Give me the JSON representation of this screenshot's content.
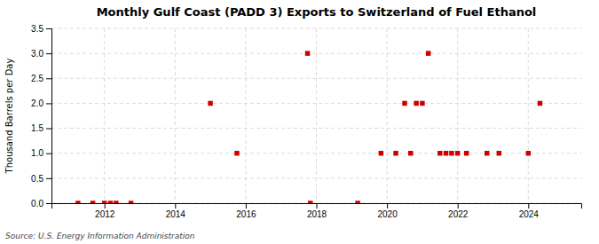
{
  "chart_data": {
    "type": "scatter",
    "title": "Monthly Gulf Coast (PADD 3) Exports to Switzerland of Fuel Ethanol",
    "ylabel": "Thousand Barrels per Day",
    "source": "Source: U.S. Energy Information Administration",
    "x": [
      2011.25,
      2011.67,
      2012.0,
      2012.17,
      2012.33,
      2012.75,
      2015.0,
      2015.75,
      2017.75,
      2017.83,
      2019.17,
      2019.83,
      2020.25,
      2020.5,
      2020.67,
      2020.83,
      2021.0,
      2021.17,
      2021.5,
      2021.67,
      2021.83,
      2022.0,
      2022.25,
      2022.83,
      2023.17,
      2024.0,
      2024.33
    ],
    "values": [
      0.0,
      0.0,
      0.0,
      0.0,
      0.0,
      0.0,
      2.0,
      1.0,
      3.0,
      0.0,
      0.0,
      1.0,
      1.0,
      2.0,
      1.0,
      2.0,
      2.0,
      3.0,
      1.0,
      1.0,
      1.0,
      1.0,
      1.0,
      1.0,
      1.0,
      1.0,
      2.0
    ],
    "color": "#cc0000",
    "marker": "square",
    "xlim": [
      2010.5,
      2025.5
    ],
    "ylim": [
      0.0,
      3.5
    ],
    "xticks": [
      2012,
      2014,
      2016,
      2018,
      2020,
      2022,
      2024
    ],
    "yticks": [
      {
        "value": 0.0,
        "label": "0.0"
      },
      {
        "value": 0.5,
        "label": "0.5"
      },
      {
        "value": 1.0,
        "label": "1.0"
      },
      {
        "value": 1.5,
        "label": "1.5"
      },
      {
        "value": 2.0,
        "label": "2.0"
      },
      {
        "value": 2.5,
        "label": "2.5"
      },
      {
        "value": 3.0,
        "label": "3.0"
      },
      {
        "value": 3.5,
        "label": "3.5"
      }
    ],
    "grid": true
  }
}
